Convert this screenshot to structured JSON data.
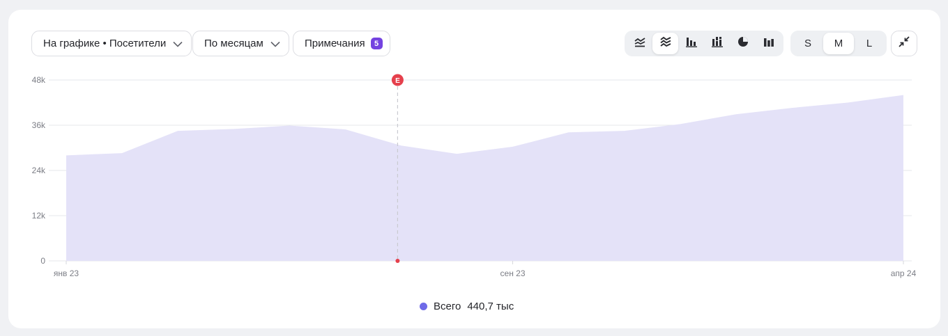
{
  "toolbar": {
    "chart_metric_label": "На графике • Посетители",
    "grouping_label": "По месяцам",
    "notes_label": "Примечания",
    "notes_count": "5",
    "chart_types": [
      {
        "icon": "line-chart-icon",
        "active": false
      },
      {
        "icon": "stacked-area-chart-icon",
        "active": true
      },
      {
        "icon": "bar-chart-icon",
        "active": false
      },
      {
        "icon": "stacked-bar-chart-icon",
        "active": false
      },
      {
        "icon": "pie-chart-icon",
        "active": false
      },
      {
        "icon": "column-chart-icon",
        "active": false
      }
    ],
    "sizes": [
      {
        "label": "S",
        "active": false
      },
      {
        "label": "M",
        "active": true
      },
      {
        "label": "L",
        "active": false
      }
    ]
  },
  "colors": {
    "area_fill": "#e4e2f8",
    "legend_dot": "#6e6ae8",
    "annotation": "#e5404c",
    "grid": "#e6e7eb",
    "axis_text": "#7b7d85"
  },
  "annotation": {
    "label": "E",
    "x_month": "2023-07"
  },
  "legend": {
    "label": "Всего",
    "value": "440,7 тыс"
  },
  "chart_data": {
    "type": "area",
    "x": [
      "2023-01",
      "2023-02",
      "2023-03",
      "2023-04",
      "2023-05",
      "2023-06",
      "2023-07",
      "2023-08",
      "2023-09",
      "2023-10",
      "2023-11",
      "2023-12",
      "2024-01",
      "2024-02",
      "2024-03",
      "2024-04"
    ],
    "series": [
      {
        "name": "Всего",
        "values": [
          28000,
          28600,
          34500,
          35000,
          35900,
          34900,
          30600,
          28400,
          30300,
          34100,
          34500,
          36300,
          38900,
          40600,
          42000,
          44000
        ]
      }
    ],
    "x_tick_labels": [
      {
        "x": "2023-01",
        "label": "янв 23"
      },
      {
        "x": "2023-09",
        "label": "сен 23"
      },
      {
        "x": "2024-04",
        "label": "апр 24"
      }
    ],
    "y_ticks": [
      {
        "value": 0,
        "label": "0"
      },
      {
        "value": 12000,
        "label": "12k"
      },
      {
        "value": 24000,
        "label": "24k"
      },
      {
        "value": 36000,
        "label": "36k"
      },
      {
        "value": 48000,
        "label": "48k"
      }
    ],
    "ylim": [
      0,
      48000
    ],
    "grid": true,
    "legend_position": "bottom"
  }
}
